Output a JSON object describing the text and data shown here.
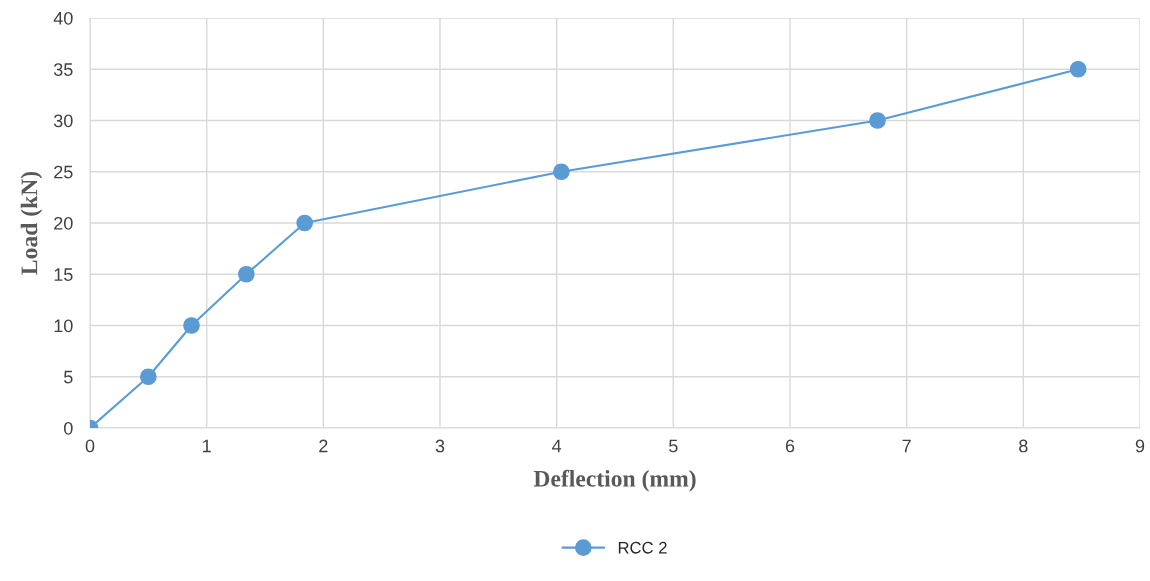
{
  "chart_data": {
    "type": "line",
    "xlabel": "Deflection (mm)",
    "ylabel": "Load (kN)",
    "x": [
      0,
      0.5,
      0.87,
      1.34,
      1.84,
      4.04,
      6.75,
      8.47
    ],
    "series": [
      {
        "name": "RCC 2",
        "color": "#5b9bd5",
        "values": [
          0,
          5,
          10,
          15,
          20,
          25,
          30,
          35
        ]
      }
    ],
    "xlim": [
      0,
      9
    ],
    "xticks": [
      0,
      1,
      2,
      3,
      4,
      5,
      6,
      7,
      8,
      9
    ],
    "ylim": [
      0,
      40
    ],
    "yticks": [
      0,
      5,
      10,
      15,
      20,
      25,
      30,
      35,
      40
    ],
    "grid": true,
    "legend": "bottom",
    "marker": "circle",
    "line_style": "solid"
  }
}
